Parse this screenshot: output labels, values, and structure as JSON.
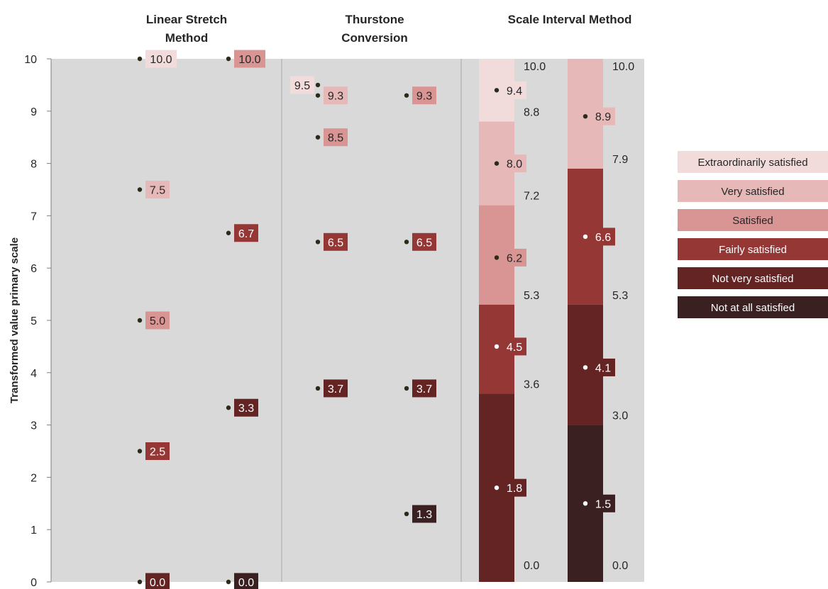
{
  "chart_data": {
    "type": "scatter",
    "ylabel": "Transformed value primary scale",
    "ylim": [
      0,
      10
    ],
    "y_ticks": [
      "0",
      "1",
      "2",
      "3",
      "4",
      "5",
      "6",
      "7",
      "8",
      "9",
      "10"
    ],
    "grid": false,
    "legend_position": "right",
    "colors": {
      "plot_background": "#d9d9d9",
      "divider": "#a6a6a6",
      "extraordinarily": "#f2dcdb",
      "very": "#e6b9b8",
      "satisfied": "#d99594",
      "fairly": "#953735",
      "not_very": "#632423",
      "not_at_all": "#3b2021"
    },
    "legend": [
      {
        "label": "Extraordinarily satisfied",
        "color_key": "extraordinarily",
        "text_color": "#262626"
      },
      {
        "label": "Very satisfied",
        "color_key": "very",
        "text_color": "#262626"
      },
      {
        "label": "Satisfied",
        "color_key": "satisfied",
        "text_color": "#262626"
      },
      {
        "label": "Fairly satisfied",
        "color_key": "fairly",
        "text_color": "#ffffff"
      },
      {
        "label": "Not  very satisfied",
        "color_key": "not_very",
        "text_color": "#ffffff"
      },
      {
        "label": "Not at all satisfied",
        "color_key": "not_at_all",
        "text_color": "#ffffff"
      }
    ],
    "groups": [
      {
        "title": [
          "Linear Stretch",
          "Method"
        ]
      },
      {
        "title": [
          "Thurstone",
          "Conversion"
        ]
      },
      {
        "title": [
          "Scale Interval Method"
        ]
      }
    ],
    "point_columns": [
      {
        "group": 0,
        "points": [
          {
            "y": 10.0,
            "label": "10.0",
            "color_key": "extraordinarily"
          },
          {
            "y": 7.5,
            "label": "7.5",
            "color_key": "very"
          },
          {
            "y": 5.0,
            "label": "5.0",
            "color_key": "satisfied"
          },
          {
            "y": 2.5,
            "label": "2.5",
            "color_key": "fairly"
          },
          {
            "y": 0.0,
            "label": "0.0",
            "color_key": "not_very"
          }
        ]
      },
      {
        "group": 0,
        "points": [
          {
            "y": 10.0,
            "label": "10.0",
            "color_key": "satisfied"
          },
          {
            "y": 6.67,
            "label": "6.7",
            "color_key": "fairly"
          },
          {
            "y": 3.33,
            "label": "3.3",
            "color_key": "not_very"
          },
          {
            "y": 0.0,
            "label": "0.0",
            "color_key": "not_at_all"
          }
        ]
      },
      {
        "group": 1,
        "points": [
          {
            "y": 9.5,
            "label": "9.5",
            "color_key": "extraordinarily",
            "label_side": "left"
          },
          {
            "y": 9.3,
            "label": "9.3",
            "color_key": "very"
          },
          {
            "y": 8.5,
            "label": "8.5",
            "color_key": "satisfied"
          },
          {
            "y": 6.5,
            "label": "6.5",
            "color_key": "fairly"
          },
          {
            "y": 3.7,
            "label": "3.7",
            "color_key": "not_very"
          }
        ]
      },
      {
        "group": 1,
        "points": [
          {
            "y": 9.3,
            "label": "9.3",
            "color_key": "satisfied"
          },
          {
            "y": 6.5,
            "label": "6.5",
            "color_key": "fairly"
          },
          {
            "y": 3.7,
            "label": "3.7",
            "color_key": "not_very"
          },
          {
            "y": 1.3,
            "label": "1.3",
            "color_key": "not_at_all"
          }
        ]
      }
    ],
    "interval_columns": [
      {
        "group": 2,
        "boundaries": [
          {
            "y": 10.0,
            "label": "10.0"
          },
          {
            "y": 8.8,
            "label": "8.8"
          },
          {
            "y": 7.2,
            "label": "7.2"
          },
          {
            "y": 5.3,
            "label": "5.3"
          },
          {
            "y": 3.6,
            "label": "3.6"
          },
          {
            "y": 0.0,
            "label": "0.0"
          }
        ],
        "segments": [
          {
            "from": 8.8,
            "to": 10.0,
            "color_key": "extraordinarily",
            "mid": 9.4,
            "label": "9.4",
            "dot": "dark"
          },
          {
            "from": 7.2,
            "to": 8.8,
            "color_key": "very",
            "mid": 8.0,
            "label": "8.0",
            "dot": "dark"
          },
          {
            "from": 5.3,
            "to": 7.2,
            "color_key": "satisfied",
            "mid": 6.2,
            "label": "6.2",
            "dot": "dark"
          },
          {
            "from": 3.6,
            "to": 5.3,
            "color_key": "fairly",
            "mid": 4.5,
            "label": "4.5",
            "dot": "light"
          },
          {
            "from": 0.0,
            "to": 3.6,
            "color_key": "not_very",
            "mid": 1.8,
            "label": "1.8",
            "dot": "light"
          }
        ]
      },
      {
        "group": 2,
        "boundaries": [
          {
            "y": 10.0,
            "label": "10.0"
          },
          {
            "y": 7.9,
            "label": "7.9"
          },
          {
            "y": 5.3,
            "label": "5.3"
          },
          {
            "y": 3.0,
            "label": "3.0"
          },
          {
            "y": 0.0,
            "label": "0.0"
          }
        ],
        "segments": [
          {
            "from": 7.9,
            "to": 10.0,
            "color_key": "very",
            "mid": 8.9,
            "label": "8.9",
            "dot": "dark"
          },
          {
            "from": 5.3,
            "to": 7.9,
            "color_key": "fairly",
            "mid": 6.6,
            "label": "6.6",
            "dot": "light"
          },
          {
            "from": 3.0,
            "to": 5.3,
            "color_key": "not_very",
            "mid": 4.1,
            "label": "4.1",
            "dot": "light"
          },
          {
            "from": 0.0,
            "to": 3.0,
            "color_key": "not_at_all",
            "mid": 1.5,
            "label": "1.5",
            "dot": "light"
          }
        ]
      }
    ]
  }
}
